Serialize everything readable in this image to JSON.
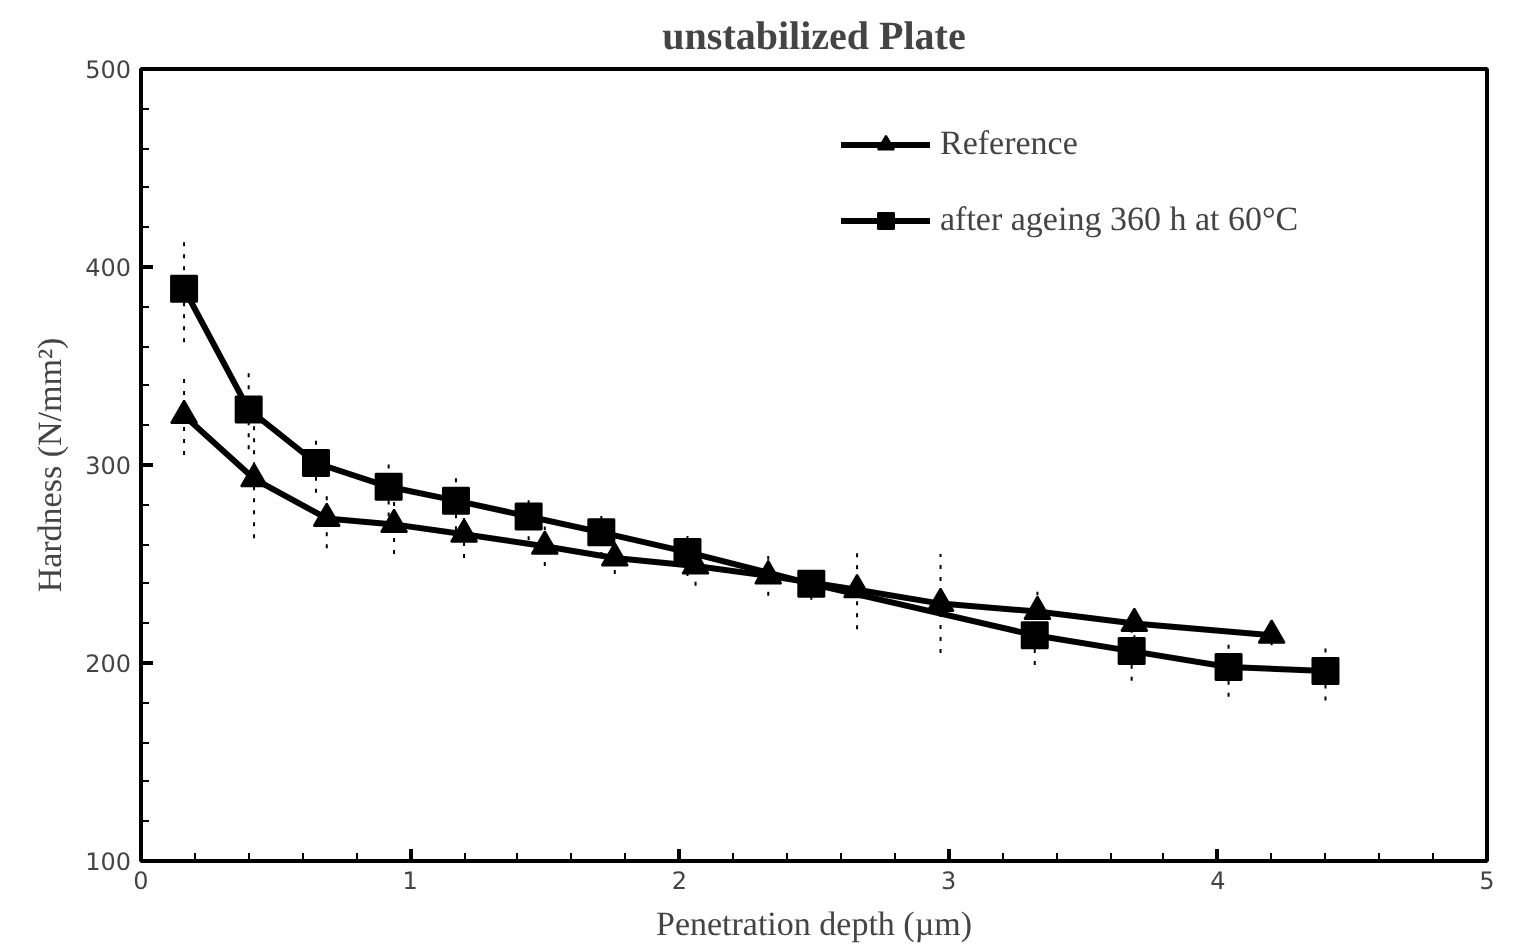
{
  "chart_data": {
    "type": "line",
    "title": "unstabilized Plate",
    "xlabel": "Penetration depth (µm)",
    "ylabel": "Hardness (N/mm²)",
    "xlim": [
      0,
      5
    ],
    "xticks": [
      0,
      1,
      2,
      3,
      4,
      5
    ],
    "ylim": [
      100,
      500
    ],
    "yticks": [
      100,
      200,
      300,
      400,
      500
    ],
    "grid": false,
    "legend": "top right",
    "line_style": "solid",
    "series": [
      {
        "name": "Reference",
        "color": "#000000",
        "marker": "triangle",
        "x": [
          0.16,
          0.42,
          0.69,
          0.94,
          1.2,
          1.5,
          1.76,
          2.06,
          2.33,
          2.66,
          2.97,
          3.33,
          3.69,
          4.2
        ],
        "values": [
          325,
          293,
          273,
          270,
          265,
          259,
          253,
          249,
          244,
          237,
          230,
          226,
          220,
          214
        ],
        "errors": [
          20,
          30,
          15,
          15,
          12,
          10,
          8,
          10,
          10,
          20,
          25,
          10,
          8,
          5
        ]
      },
      {
        "name": "after ageing 360 h at 60°C",
        "color": "#000000",
        "marker": "square",
        "x": [
          0.16,
          0.4,
          0.65,
          0.92,
          1.17,
          1.44,
          1.71,
          2.03,
          2.49,
          3.32,
          3.68,
          4.04,
          4.4
        ],
        "values": [
          389,
          328,
          301,
          289,
          282,
          274,
          266,
          256,
          240,
          214,
          206,
          198,
          196
        ],
        "errors": [
          27,
          20,
          15,
          15,
          15,
          12,
          12,
          12,
          8,
          15,
          15,
          15,
          15
        ]
      }
    ]
  }
}
